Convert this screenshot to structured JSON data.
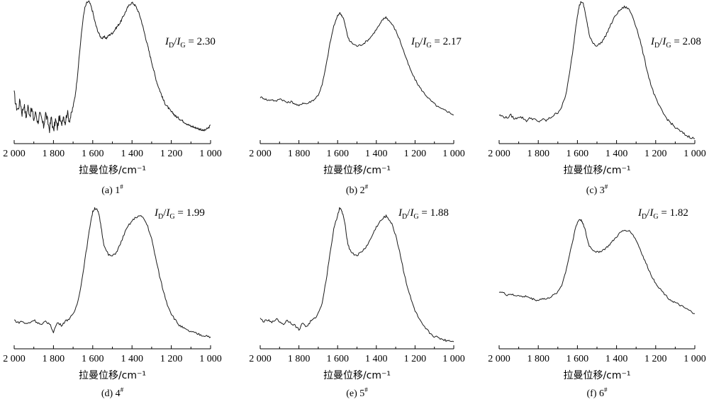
{
  "figure": {
    "axis_title": "拉曼位移/cm⁻¹",
    "ratio_prefix_i": "I",
    "ratio_d": "D",
    "ratio_g": "G",
    "ratio_slash": "/",
    "ratio_eq": " = ",
    "sample_sup": "#"
  },
  "chart_data": [
    {
      "type": "line",
      "panel": "(a)",
      "sample": "1",
      "ratio": "2.30",
      "xlabel": "拉曼位移/cm⁻¹",
      "xlim": [
        2000,
        1000
      ],
      "xticks": [
        "2 000",
        "1 800",
        "1 600",
        "1 400",
        "1 200",
        "1 000"
      ],
      "series": [
        {
          "x": [
            2000,
            1990,
            1980,
            1970,
            1960,
            1950,
            1940,
            1930,
            1920,
            1910,
            1900,
            1890,
            1880,
            1870,
            1860,
            1850,
            1840,
            1830,
            1820,
            1810,
            1800,
            1790,
            1780,
            1770,
            1760,
            1750,
            1740,
            1730,
            1720,
            1710,
            1700,
            1690,
            1680,
            1670,
            1660,
            1650,
            1640,
            1630,
            1620,
            1610,
            1600,
            1590,
            1580,
            1570,
            1560,
            1550,
            1540,
            1530,
            1520,
            1510,
            1500,
            1490,
            1480,
            1470,
            1460,
            1450,
            1440,
            1430,
            1420,
            1410,
            1400,
            1390,
            1380,
            1370,
            1360,
            1350,
            1340,
            1330,
            1320,
            1310,
            1300,
            1290,
            1280,
            1270,
            1260,
            1250,
            1240,
            1230,
            1220,
            1210,
            1200,
            1190,
            1180,
            1170,
            1160,
            1150,
            1140,
            1130,
            1120,
            1110,
            1100,
            1090,
            1080,
            1070,
            1060,
            1050,
            1040,
            1030,
            1020,
            1010,
            1000
          ],
          "y": [
            0.3,
            0.2,
            0.18,
            0.25,
            0.15,
            0.22,
            0.12,
            0.2,
            0.14,
            0.18,
            0.1,
            0.16,
            0.08,
            0.14,
            0.1,
            0.05,
            0.15,
            0.09,
            0.03,
            0.12,
            0.01,
            0.1,
            0.04,
            0.12,
            0.06,
            0.14,
            0.08,
            0.16,
            0.1,
            0.13,
            0.2,
            0.28,
            0.4,
            0.56,
            0.72,
            0.86,
            0.95,
            0.99,
            1.0,
            0.97,
            0.92,
            0.85,
            0.8,
            0.76,
            0.73,
            0.72,
            0.73,
            0.72,
            0.74,
            0.75,
            0.76,
            0.78,
            0.8,
            0.82,
            0.84,
            0.87,
            0.9,
            0.93,
            0.96,
            0.98,
            0.99,
            0.98,
            0.96,
            0.93,
            0.89,
            0.84,
            0.78,
            0.72,
            0.66,
            0.6,
            0.54,
            0.48,
            0.42,
            0.37,
            0.33,
            0.29,
            0.25,
            0.22,
            0.2,
            0.18,
            0.16,
            0.15,
            0.13,
            0.12,
            0.11,
            0.1,
            0.09,
            0.08,
            0.07,
            0.06,
            0.05,
            0.05,
            0.04,
            0.04,
            0.03,
            0.03,
            0.02,
            0.02,
            0.03,
            0.04,
            0.06
          ]
        }
      ]
    },
    {
      "type": "line",
      "panel": "(b)",
      "sample": "2",
      "ratio": "2.17",
      "xlabel": "拉曼位移/cm⁻¹",
      "xlim": [
        2000,
        1000
      ],
      "xticks": [
        "2 000",
        "1 800",
        "1 600",
        "1 400",
        "1 200",
        "1 000"
      ],
      "series": [
        {
          "x": [
            2000,
            1980,
            1960,
            1940,
            1920,
            1900,
            1880,
            1860,
            1840,
            1820,
            1800,
            1780,
            1760,
            1740,
            1720,
            1700,
            1680,
            1660,
            1640,
            1620,
            1600,
            1590,
            1580,
            1570,
            1560,
            1550,
            1540,
            1520,
            1500,
            1480,
            1460,
            1440,
            1420,
            1400,
            1380,
            1370,
            1360,
            1350,
            1340,
            1320,
            1300,
            1280,
            1260,
            1240,
            1220,
            1200,
            1180,
            1160,
            1140,
            1120,
            1100,
            1080,
            1060,
            1040,
            1020,
            1000
          ],
          "y": [
            0.24,
            0.23,
            0.21,
            0.22,
            0.2,
            0.23,
            0.21,
            0.19,
            0.2,
            0.18,
            0.16,
            0.19,
            0.18,
            0.2,
            0.22,
            0.26,
            0.35,
            0.52,
            0.72,
            0.88,
            0.97,
            1.0,
            0.98,
            0.95,
            0.88,
            0.8,
            0.75,
            0.72,
            0.7,
            0.71,
            0.73,
            0.76,
            0.8,
            0.85,
            0.9,
            0.93,
            0.95,
            0.96,
            0.94,
            0.9,
            0.84,
            0.76,
            0.66,
            0.56,
            0.47,
            0.4,
            0.34,
            0.29,
            0.25,
            0.21,
            0.18,
            0.15,
            0.13,
            0.12,
            0.1,
            0.08
          ]
        }
      ]
    },
    {
      "type": "line",
      "panel": "(c)",
      "sample": "3",
      "ratio": "2.08",
      "xlabel": "拉曼位移/cm⁻¹",
      "xlim": [
        2000,
        1000
      ],
      "xticks": [
        "2 000",
        "1 800",
        "1 600",
        "1 400",
        "1 200",
        "1 000"
      ],
      "series": [
        {
          "x": [
            2000,
            1980,
            1960,
            1940,
            1920,
            1900,
            1880,
            1860,
            1840,
            1820,
            1800,
            1780,
            1760,
            1740,
            1720,
            1700,
            1680,
            1660,
            1640,
            1620,
            1610,
            1600,
            1590,
            1580,
            1570,
            1560,
            1550,
            1540,
            1520,
            1500,
            1480,
            1460,
            1440,
            1420,
            1400,
            1380,
            1360,
            1340,
            1320,
            1300,
            1280,
            1260,
            1240,
            1220,
            1200,
            1180,
            1160,
            1140,
            1120,
            1100,
            1080,
            1060,
            1040,
            1020,
            1000
          ],
          "y": [
            0.18,
            0.17,
            0.16,
            0.18,
            0.15,
            0.17,
            0.16,
            0.14,
            0.16,
            0.15,
            0.13,
            0.15,
            0.14,
            0.16,
            0.18,
            0.2,
            0.24,
            0.32,
            0.48,
            0.68,
            0.8,
            0.9,
            0.97,
            1.0,
            0.98,
            0.92,
            0.84,
            0.76,
            0.7,
            0.68,
            0.7,
            0.74,
            0.8,
            0.86,
            0.91,
            0.94,
            0.96,
            0.95,
            0.9,
            0.82,
            0.72,
            0.6,
            0.48,
            0.38,
            0.3,
            0.24,
            0.19,
            0.15,
            0.12,
            0.09,
            0.07,
            0.05,
            0.03,
            0.02,
            0.01
          ]
        }
      ]
    },
    {
      "type": "line",
      "panel": "(d)",
      "sample": "4",
      "ratio": "1.99",
      "xlabel": "拉曼位移/cm⁻¹",
      "xlim": [
        2000,
        1000
      ],
      "xticks": [
        "2 000",
        "1 800",
        "1 600",
        "1 400",
        "1 200",
        "1 000"
      ],
      "series": [
        {
          "x": [
            2000,
            1980,
            1960,
            1940,
            1920,
            1900,
            1880,
            1860,
            1840,
            1820,
            1800,
            1780,
            1760,
            1740,
            1720,
            1700,
            1680,
            1660,
            1640,
            1620,
            1610,
            1600,
            1590,
            1580,
            1570,
            1560,
            1550,
            1540,
            1520,
            1500,
            1480,
            1460,
            1440,
            1420,
            1400,
            1380,
            1360,
            1340,
            1320,
            1300,
            1280,
            1260,
            1240,
            1220,
            1200,
            1180,
            1160,
            1140,
            1120,
            1100,
            1080,
            1060,
            1040,
            1020,
            1000
          ],
          "y": [
            0.14,
            0.12,
            0.13,
            0.11,
            0.12,
            0.14,
            0.12,
            0.1,
            0.13,
            0.11,
            0.05,
            0.12,
            0.1,
            0.13,
            0.15,
            0.18,
            0.26,
            0.4,
            0.6,
            0.8,
            0.9,
            0.97,
            1.0,
            0.99,
            0.96,
            0.88,
            0.78,
            0.7,
            0.64,
            0.63,
            0.66,
            0.72,
            0.8,
            0.86,
            0.9,
            0.93,
            0.94,
            0.92,
            0.86,
            0.76,
            0.62,
            0.48,
            0.36,
            0.26,
            0.19,
            0.14,
            0.1,
            0.08,
            0.06,
            0.05,
            0.04,
            0.03,
            0.02,
            0.02,
            0.01
          ]
        }
      ]
    },
    {
      "type": "line",
      "panel": "(e)",
      "sample": "5",
      "ratio": "1.88",
      "xlabel": "拉曼位移/cm⁻¹",
      "xlim": [
        2000,
        1000
      ],
      "xticks": [
        "2 000",
        "1 800",
        "1 600",
        "1 400",
        "1 200",
        "1 000"
      ],
      "series": [
        {
          "x": [
            2000,
            1980,
            1960,
            1940,
            1920,
            1900,
            1880,
            1860,
            1840,
            1820,
            1800,
            1780,
            1760,
            1740,
            1720,
            1700,
            1680,
            1660,
            1640,
            1620,
            1600,
            1590,
            1580,
            1570,
            1560,
            1550,
            1540,
            1520,
            1500,
            1480,
            1460,
            1440,
            1420,
            1400,
            1380,
            1360,
            1350,
            1340,
            1320,
            1300,
            1280,
            1260,
            1240,
            1220,
            1200,
            1180,
            1160,
            1140,
            1120,
            1100,
            1080,
            1060,
            1040,
            1020,
            1000
          ],
          "y": [
            0.18,
            0.16,
            0.17,
            0.15,
            0.18,
            0.16,
            0.14,
            0.17,
            0.15,
            0.13,
            0.1,
            0.15,
            0.12,
            0.16,
            0.18,
            0.22,
            0.3,
            0.46,
            0.66,
            0.84,
            0.95,
            1.0,
            0.98,
            0.94,
            0.86,
            0.76,
            0.7,
            0.66,
            0.65,
            0.67,
            0.7,
            0.74,
            0.8,
            0.86,
            0.9,
            0.93,
            0.94,
            0.93,
            0.88,
            0.8,
            0.68,
            0.54,
            0.42,
            0.32,
            0.24,
            0.18,
            0.13,
            0.1,
            0.07,
            0.05,
            0.04,
            0.03,
            0.02,
            0.02,
            0.01
          ]
        }
      ]
    },
    {
      "type": "line",
      "panel": "(f)",
      "sample": "6",
      "ratio": "1.82",
      "xlabel": "拉曼位移/cm⁻¹",
      "xlim": [
        2000,
        1000
      ],
      "xticks": [
        "2 000",
        "1 800",
        "1 600",
        "1 400",
        "1 200",
        "1 000"
      ],
      "series": [
        {
          "x": [
            2000,
            1980,
            1960,
            1940,
            1920,
            1900,
            1880,
            1860,
            1840,
            1820,
            1800,
            1780,
            1760,
            1740,
            1720,
            1700,
            1680,
            1660,
            1640,
            1620,
            1610,
            1600,
            1590,
            1580,
            1570,
            1560,
            1550,
            1540,
            1520,
            1500,
            1480,
            1460,
            1440,
            1420,
            1400,
            1380,
            1360,
            1340,
            1320,
            1300,
            1280,
            1260,
            1240,
            1220,
            1200,
            1180,
            1160,
            1140,
            1120,
            1100,
            1080,
            1060,
            1040,
            1020,
            1000
          ],
          "y": [
            0.34,
            0.33,
            0.31,
            0.32,
            0.3,
            0.31,
            0.29,
            0.3,
            0.28,
            0.27,
            0.26,
            0.28,
            0.27,
            0.29,
            0.31,
            0.34,
            0.4,
            0.52,
            0.68,
            0.84,
            0.92,
            0.97,
            1.0,
            0.99,
            0.96,
            0.9,
            0.82,
            0.76,
            0.72,
            0.7,
            0.71,
            0.73,
            0.76,
            0.8,
            0.84,
            0.88,
            0.9,
            0.9,
            0.87,
            0.81,
            0.73,
            0.64,
            0.56,
            0.48,
            0.42,
            0.37,
            0.33,
            0.29,
            0.26,
            0.24,
            0.22,
            0.2,
            0.18,
            0.16,
            0.14
          ]
        }
      ]
    }
  ]
}
